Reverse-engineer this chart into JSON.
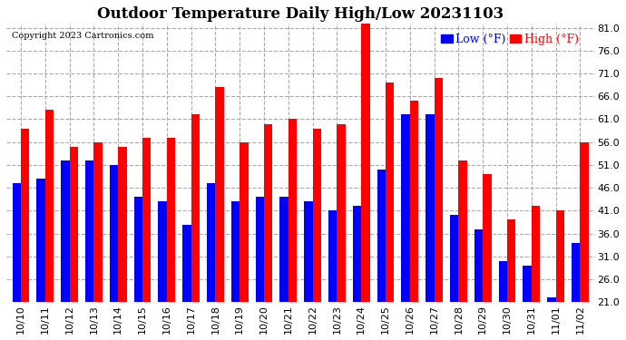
{
  "title": "Outdoor Temperature Daily High/Low 20231103",
  "copyright": "Copyright 2023 Cartronics.com",
  "legend_low": "Low (°F)",
  "legend_high": "High (°F)",
  "color_low": "#0000ff",
  "color_high": "#ff0000",
  "categories": [
    "10/10",
    "10/11",
    "10/12",
    "10/13",
    "10/14",
    "10/15",
    "10/16",
    "10/17",
    "10/18",
    "10/19",
    "10/20",
    "10/21",
    "10/22",
    "10/23",
    "10/24",
    "10/25",
    "10/26",
    "10/27",
    "10/28",
    "10/29",
    "10/30",
    "10/31",
    "11/01",
    "11/02"
  ],
  "highs": [
    59,
    63,
    55,
    56,
    55,
    57,
    57,
    62,
    68,
    56,
    60,
    61,
    59,
    60,
    82,
    69,
    65,
    70,
    52,
    49,
    39,
    42,
    41,
    56
  ],
  "lows": [
    47,
    48,
    52,
    52,
    51,
    44,
    43,
    38,
    47,
    43,
    44,
    44,
    43,
    41,
    42,
    50,
    62,
    62,
    40,
    37,
    30,
    29,
    22,
    34
  ],
  "ymin": 21,
  "ymax": 82,
  "yticks": [
    21.0,
    26.0,
    31.0,
    36.0,
    41.0,
    46.0,
    51.0,
    56.0,
    61.0,
    66.0,
    71.0,
    76.0,
    81.0
  ],
  "background_color": "#ffffff",
  "grid_color": "#aaaaaa",
  "title_fontsize": 12,
  "tick_fontsize": 8,
  "legend_fontsize": 9,
  "copyright_fontsize": 7,
  "bar_width": 0.35
}
